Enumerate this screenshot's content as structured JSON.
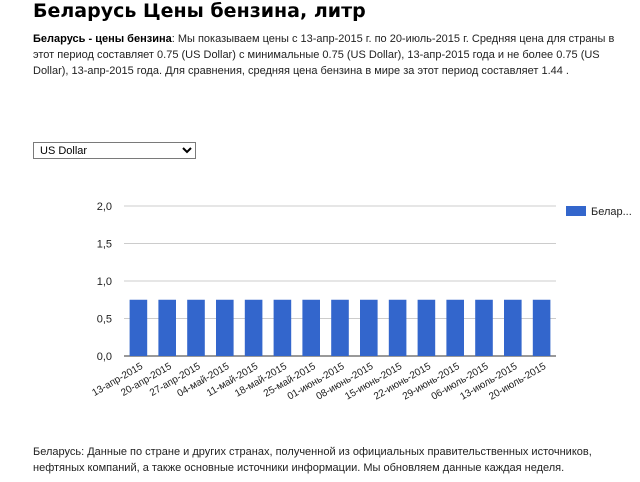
{
  "page": {
    "title": "Беларусь Цены бензина, литр",
    "intro_bold": "Беларусь - цены бензина",
    "intro_text": ": Мы показываем цены с 13-апр-2015 г. по 20-июль-2015 г. Средняя цена для страны в этот период составляет 0.75 (US Dollar) с минимальные 0.75 (US Dollar), 13-апр-2015 года и не более 0.75 (US Dollar), 13-апр-2015 года. Для сравнения, средняя цена бензина в мире за этот период составляет 1.44 .",
    "footer_text": "Беларусь: Данные по стране и других странах, полученной из официальных правительственных источников, нефтяных компаний, а также основные источники информации. Мы обновляем данные каждая неделя."
  },
  "currency_select": {
    "selected": "US Dollar",
    "options": [
      "US Dollar"
    ]
  },
  "chart_data": {
    "type": "bar",
    "title": "",
    "xlabel": "",
    "ylabel": "",
    "categories": [
      "13-апр-2015",
      "20-апр-2015",
      "27-апр-2015",
      "04-май-2015",
      "11-май-2015",
      "18-май-2015",
      "25-май-2015",
      "01-июнь-2015",
      "08-июнь-2015",
      "15-июнь-2015",
      "22-июнь-2015",
      "29-июнь-2015",
      "06-июль-2015",
      "13-июль-2015",
      "20-июль-2015"
    ],
    "series": [
      {
        "name": "Белар...",
        "color": "#3366cc",
        "values": [
          0.75,
          0.75,
          0.75,
          0.75,
          0.75,
          0.75,
          0.75,
          0.75,
          0.75,
          0.75,
          0.75,
          0.75,
          0.75,
          0.75,
          0.75
        ]
      }
    ],
    "ylim": [
      0,
      2
    ],
    "yticks": [
      "0,0",
      "0,5",
      "1,0",
      "1,5",
      "2,0"
    ],
    "grid": true,
    "legend_position": "right"
  }
}
